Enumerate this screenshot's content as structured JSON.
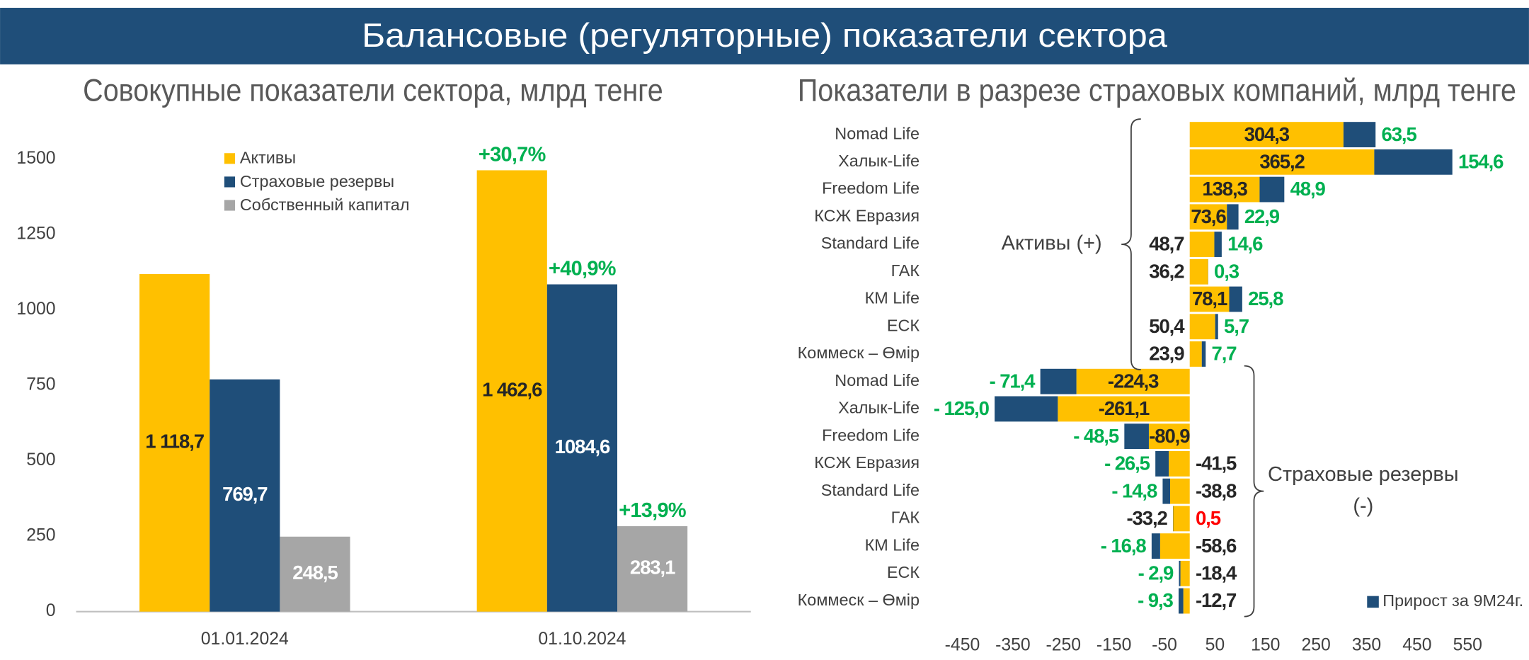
{
  "title": "Балансовые (регуляторные) показатели сектора",
  "chart_data": [
    {
      "type": "bar",
      "title": "Совокупные показатели сектора, млрд тенге",
      "categories": [
        "01.01.2024",
        "01.10.2024"
      ],
      "series": [
        {
          "name": "Активы",
          "color": "#ffc000",
          "label_color": "#262626",
          "values": [
            1118.7,
            1462.6
          ],
          "value_labels": [
            "1 118,7",
            "1 462,6"
          ],
          "growth": "+30,7%"
        },
        {
          "name": "Страховые резервы",
          "color": "#1f4e79",
          "label_color": "#ffffff",
          "values": [
            769.7,
            1084.6
          ],
          "value_labels": [
            "769,7",
            "1084,6"
          ],
          "growth": "+40,9%"
        },
        {
          "name": "Собственный капитал",
          "color": "#a6a6a6",
          "label_color": "#ffffff",
          "values": [
            248.5,
            283.1
          ],
          "value_labels": [
            "248,5",
            "283,1"
          ],
          "growth": "+13,9%"
        }
      ],
      "ylim": [
        0,
        1500
      ],
      "yticks": [
        0,
        250,
        500,
        750,
        1000,
        1250,
        1500
      ],
      "grid": false,
      "legend": "top"
    },
    {
      "type": "hbar_stacked",
      "title": "Показатели в разрезе страховых компаний, млрд тенге",
      "categories": [
        "Nomad Life",
        "Халык-Life",
        "Freedom Life",
        "КСЖ Евразия",
        "Standard Life",
        "ГАК",
        "КМ Life",
        "ЕСК",
        "Коммеск – Өмір",
        "Nomad Life",
        "Халык-Life",
        "Freedom Life",
        "КСЖ Евразия",
        "Standard Life",
        "ГАК",
        "КМ Life",
        "ЕСК",
        "Коммеск – Өмір"
      ],
      "series": [
        {
          "color": "#ffc000",
          "label_color": "#262626",
          "values": [
            304.3,
            365.2,
            138.3,
            73.6,
            48.7,
            36.2,
            78.1,
            50.4,
            23.9,
            -224.3,
            -261.1,
            -80.9,
            -41.5,
            -38.8,
            -33.2,
            -58.6,
            -18.4,
            -12.7
          ],
          "value_labels": [
            "304,3",
            "365,2",
            "138,3",
            "73,6",
            "48,7",
            "36,2",
            "78,1",
            "50,4",
            "23,9",
            "-224,3",
            "-261,1",
            "-80,9",
            "-41,5",
            "-38,8",
            "-33,2",
            "-58,6",
            "-18,4",
            "-12,7"
          ]
        },
        {
          "name": "Прирост за 9M24г.",
          "color": "#1f4e79",
          "label_color": "#00b050",
          "opposite_label_color": "#ff0000",
          "values": [
            63.5,
            154.6,
            48.9,
            22.9,
            14.6,
            0.3,
            25.8,
            5.7,
            7.7,
            -71.4,
            -125.0,
            -48.5,
            -26.5,
            -14.8,
            0.5,
            -16.8,
            -2.9,
            -9.3
          ],
          "value_labels": [
            "63,5",
            "154,6",
            "48,9",
            "22,9",
            "14,6",
            "0,3",
            "25,8",
            "5,7",
            "7,7",
            "- 71,4",
            "- 125,0",
            "- 48,5",
            "- 26,5",
            "- 14,8",
            "0,5",
            "- 16,8",
            "- 2,9",
            "- 9,3"
          ]
        }
      ],
      "group_labels": [
        [
          "Активы (+)"
        ],
        [
          "Страховые резервы",
          "(-)"
        ]
      ],
      "xlim": [
        -500,
        600
      ],
      "xticks": [
        -450,
        -350,
        -250,
        -150,
        -50,
        50,
        150,
        250,
        350,
        450,
        550
      ],
      "grid": false,
      "legend": "bottom-right"
    }
  ]
}
